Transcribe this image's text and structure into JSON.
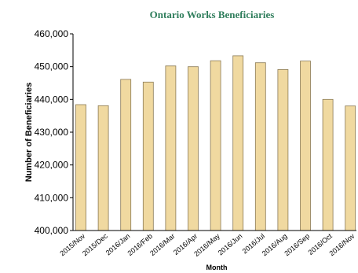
{
  "chart_data": {
    "type": "bar",
    "title": "Ontario Works Beneficiaries",
    "xlabel": "Month",
    "ylabel": "Number of Beneficiaries",
    "categories": [
      "2015/Nov",
      "2015/Dec",
      "2016/Jan",
      "2016/Feb",
      "2016/Mar",
      "2016/Apr",
      "2016/May",
      "2016/Jun",
      "2016/Jul",
      "2016/Aug",
      "2016/Sep",
      "2016/Oct",
      "2016/Nov"
    ],
    "values": [
      438400,
      438100,
      446100,
      445300,
      450200,
      450000,
      451800,
      453300,
      451200,
      449100,
      451700,
      440000,
      438000
    ],
    "ylim": [
      400000,
      460000
    ],
    "yticks": [
      400000,
      410000,
      420000,
      430000,
      440000,
      450000,
      460000
    ],
    "ytick_labels": [
      "400,000",
      "410,000",
      "420,000",
      "430,000",
      "440,000",
      "450,000",
      "460,000"
    ],
    "grid": false,
    "bar_color": "#f0d9a0",
    "title_color": "#2e7d5b"
  }
}
